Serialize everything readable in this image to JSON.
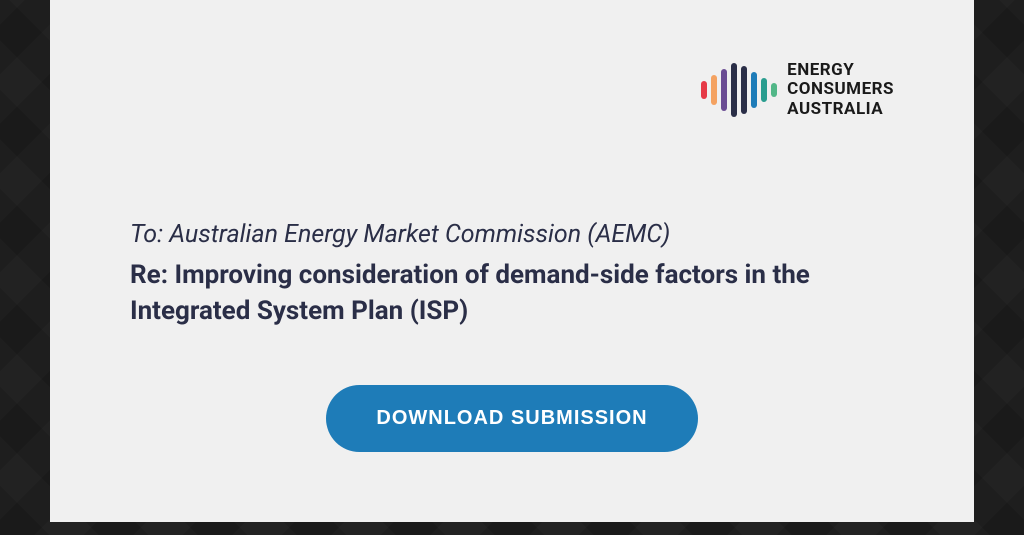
{
  "logo": {
    "text_line1": "ENERGY",
    "text_line2": "CONSUMERS",
    "text_line3": "AUSTRALIA",
    "bars": [
      {
        "color": "#e63946",
        "height": 18
      },
      {
        "color": "#f4a261",
        "height": 30
      },
      {
        "color": "#6a4c93",
        "height": 42
      },
      {
        "color": "#2a2e47",
        "height": 54
      },
      {
        "color": "#2a2e47",
        "height": 48
      },
      {
        "color": "#1e7cb8",
        "height": 36
      },
      {
        "color": "#2a9d8f",
        "height": 24
      },
      {
        "color": "#52b788",
        "height": 14
      }
    ],
    "dot_color": "#2a9d8f"
  },
  "content": {
    "to_line": "To: Australian Energy Market Commission (AEMC)",
    "re_line": "Re: Improving consideration of demand-side factors in the Integrated System Plan (ISP)"
  },
  "button": {
    "label": "DOWNLOAD SUBMISSION",
    "bg_color": "#1e7cb8",
    "text_color": "#ffffff"
  },
  "card": {
    "bg_color": "#f0f0f0"
  },
  "page": {
    "bg_color": "#1a1a1a"
  }
}
